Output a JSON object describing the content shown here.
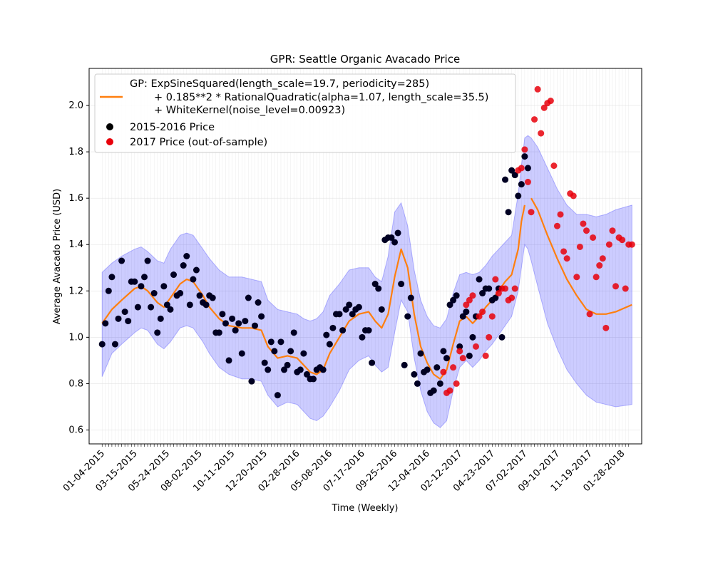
{
  "chart_data": {
    "type": "line",
    "title": "GPR: Seattle Organic Avacado Price",
    "xlabel": "Time (Weekly)",
    "ylabel": "Average Avacado Price (USD)",
    "ylim": [
      0.54,
      2.16
    ],
    "xlim": [
      -4,
      166
    ],
    "grid": true,
    "legend_position": "top-left",
    "x_tick_labels": [
      "01-04-2015",
      "03-15-2015",
      "05-24-2015",
      "08-02-2015",
      "10-11-2015",
      "12-20-2015",
      "02-28-2016",
      "05-08-2016",
      "07-17-2016",
      "09-25-2016",
      "12-04-2016",
      "02-12-2017",
      "04-23-2017",
      "07-02-2017",
      "09-10-2017",
      "11-19-2017",
      "01-28-2018"
    ],
    "y_ticks": [
      0.6,
      0.8,
      1.0,
      1.2,
      1.4,
      1.6,
      1.8,
      2.0
    ],
    "legend": {
      "gp_lines": [
        "GP: ExpSineSquared(length_scale=19.7, periodicity=285)",
        "+ 0.185**2 * RationalQuadratic(alpha=1.07, length_scale=35.5)",
        "+ WhiteKernel(noise_level=0.00923)"
      ],
      "train_label": "2015-2016 Price",
      "test_label": "2017 Price (out-of-sample)"
    },
    "colors": {
      "gp_mean": "#ff7f0e",
      "band": "#0000ff",
      "train": "#000022",
      "test": "#e8000b",
      "grid": "#dddddd"
    },
    "series": [
      {
        "name": "2015-2016 Price",
        "kind": "scatter",
        "x": [
          0,
          1,
          2,
          3,
          4,
          5,
          6,
          7,
          8,
          9,
          10,
          11,
          12,
          13,
          14,
          15,
          16,
          17,
          18,
          19,
          20,
          21,
          22,
          23,
          24,
          25,
          26,
          27,
          28,
          29,
          30,
          31,
          32,
          33,
          34,
          35,
          36,
          37,
          38,
          39,
          40,
          41,
          42,
          43,
          44,
          45,
          46,
          47,
          48,
          49,
          50,
          51,
          52,
          53,
          54,
          55,
          56,
          57,
          58,
          59,
          60,
          61,
          62,
          63,
          64,
          65,
          66,
          67,
          68,
          69,
          70,
          71,
          72,
          73,
          74,
          75,
          76,
          77,
          78,
          79,
          80,
          81,
          82,
          83,
          84,
          85,
          86,
          87,
          88,
          89,
          90,
          91,
          92,
          93,
          94,
          95,
          96,
          97,
          98,
          99,
          100,
          101,
          102,
          103,
          104,
          105,
          106,
          107,
          108,
          109,
          110,
          111,
          112,
          113,
          114,
          115,
          116,
          117,
          118,
          119,
          120,
          121,
          122,
          123,
          124,
          125,
          126,
          127,
          128,
          129,
          130,
          131
        ],
        "y": [
          0.97,
          1.06,
          1.2,
          1.26,
          0.97,
          1.08,
          1.33,
          1.11,
          1.07,
          1.24,
          1.24,
          1.13,
          1.22,
          1.26,
          1.33,
          1.13,
          1.19,
          1.02,
          1.08,
          1.22,
          1.14,
          1.12,
          1.27,
          1.18,
          1.19,
          1.31,
          1.35,
          1.14,
          1.25,
          1.29,
          1.18,
          1.15,
          1.14,
          1.18,
          1.17,
          1.02,
          1.02,
          1.1,
          1.06,
          0.9,
          1.08,
          1.03,
          1.06,
          0.93,
          1.07,
          1.17,
          0.81,
          1.05,
          1.15,
          1.09,
          0.89,
          0.86,
          0.98,
          0.94,
          0.75,
          0.98,
          0.86,
          0.88,
          0.94,
          1.02,
          0.85,
          0.86,
          0.93,
          0.84,
          0.82,
          0.82,
          0.86,
          0.87,
          0.86,
          1.01,
          0.97,
          1.04,
          1.1,
          1.1,
          1.03,
          1.12,
          1.14,
          1.1,
          1.12,
          1.13,
          1.0,
          1.03,
          1.03,
          0.89,
          1.23,
          1.21,
          1.12,
          1.42,
          1.43,
          1.43,
          1.41,
          1.45,
          1.23,
          0.88,
          1.09,
          1.17,
          0.84,
          0.8,
          0.93,
          0.85,
          0.86,
          0.76,
          0.77,
          0.87,
          0.8,
          0.94,
          0.91,
          1.14,
          1.16,
          1.18,
          0.96,
          1.09,
          1.11,
          0.92,
          1.0,
          1.09,
          1.25,
          1.19,
          1.21,
          1.21,
          1.16,
          1.17,
          1.21,
          1.0,
          1.68,
          1.54,
          1.72,
          1.7,
          1.61,
          1.66,
          1.78,
          1.73
        ]
      },
      {
        "name": "2017 Price (out-of-sample)",
        "kind": "scatter",
        "x": [
          105,
          106,
          107,
          108,
          109,
          110,
          111,
          112,
          113,
          114,
          115,
          116,
          117,
          118,
          119,
          120,
          121,
          122,
          123,
          124,
          125,
          126,
          127,
          128,
          129,
          130,
          131,
          132,
          133,
          134,
          135,
          136,
          137,
          138,
          139,
          140,
          141,
          142,
          143,
          144,
          145,
          146,
          147,
          148,
          149,
          150,
          151,
          152,
          153,
          154,
          155,
          156,
          157,
          158,
          159,
          160,
          161,
          162,
          163
        ],
        "y": [
          0.85,
          0.76,
          0.77,
          0.87,
          0.8,
          0.94,
          0.91,
          1.14,
          1.16,
          1.18,
          0.96,
          1.09,
          1.11,
          0.92,
          1.0,
          1.09,
          1.25,
          1.19,
          1.21,
          1.21,
          1.16,
          1.17,
          1.21,
          1.72,
          1.73,
          1.81,
          1.67,
          1.54,
          1.94,
          2.07,
          1.88,
          1.99,
          2.01,
          2.02,
          1.74,
          1.48,
          1.53,
          1.37,
          1.34,
          1.62,
          1.61,
          1.26,
          1.39,
          1.49,
          1.46,
          1.1,
          1.43,
          1.26,
          1.31,
          1.34,
          1.04,
          1.4,
          1.46,
          1.22,
          1.43,
          1.42,
          1.21,
          1.4,
          1.4
        ]
      },
      {
        "name": "GP mean",
        "kind": "line",
        "x": [
          0,
          3,
          6,
          10,
          12,
          14,
          17,
          19,
          21,
          24,
          26,
          28,
          31,
          33,
          36,
          39,
          43,
          46,
          49,
          51,
          54,
          57,
          60,
          62,
          64,
          66,
          68,
          70,
          73,
          76,
          79,
          82,
          84,
          86,
          88,
          90,
          92,
          94,
          96,
          98,
          100,
          102,
          104,
          106,
          108,
          110,
          112,
          114,
          116,
          118,
          120,
          122,
          124,
          126,
          128,
          129,
          130,
          131,
          132,
          134,
          137,
          140,
          143,
          146,
          149,
          152,
          155,
          158,
          163
        ],
        "y": [
          1.06,
          1.12,
          1.16,
          1.21,
          1.22,
          1.2,
          1.15,
          1.13,
          1.17,
          1.23,
          1.25,
          1.24,
          1.18,
          1.13,
          1.08,
          1.05,
          1.04,
          1.04,
          1.03,
          0.96,
          0.91,
          0.92,
          0.91,
          0.88,
          0.85,
          0.84,
          0.86,
          0.93,
          1.0,
          1.07,
          1.1,
          1.11,
          1.07,
          1.04,
          1.1,
          1.26,
          1.38,
          1.3,
          1.1,
          0.96,
          0.89,
          0.84,
          0.82,
          0.86,
          0.97,
          1.07,
          1.09,
          1.06,
          1.09,
          1.13,
          1.16,
          1.2,
          1.24,
          1.27,
          1.38,
          1.5,
          1.57,
          null,
          1.6,
          1.55,
          1.44,
          1.34,
          1.25,
          1.18,
          1.12,
          1.1,
          1.1,
          1.11,
          1.14
        ]
      },
      {
        "name": "GP confidence band",
        "kind": "area",
        "x": [
          0,
          3,
          6,
          10,
          12,
          14,
          17,
          19,
          21,
          24,
          26,
          28,
          31,
          33,
          36,
          39,
          43,
          46,
          49,
          51,
          54,
          57,
          60,
          62,
          64,
          66,
          68,
          70,
          73,
          76,
          79,
          82,
          84,
          86,
          88,
          90,
          92,
          94,
          96,
          98,
          100,
          102,
          104,
          106,
          108,
          110,
          112,
          114,
          116,
          118,
          120,
          122,
          124,
          126,
          128,
          129,
          130,
          131,
          132,
          134,
          137,
          140,
          143,
          146,
          149,
          152,
          155,
          158,
          163
        ],
        "upper": [
          1.28,
          1.32,
          1.35,
          1.38,
          1.39,
          1.37,
          1.33,
          1.32,
          1.38,
          1.44,
          1.45,
          1.44,
          1.38,
          1.34,
          1.29,
          1.26,
          1.26,
          1.25,
          1.24,
          1.16,
          1.12,
          1.11,
          1.1,
          1.08,
          1.07,
          1.08,
          1.11,
          1.18,
          1.23,
          1.29,
          1.3,
          1.3,
          1.26,
          1.24,
          1.35,
          1.54,
          1.58,
          1.48,
          1.29,
          1.16,
          1.09,
          1.05,
          1.04,
          1.08,
          1.19,
          1.27,
          1.28,
          1.27,
          1.28,
          1.31,
          1.35,
          1.38,
          1.41,
          1.44,
          1.62,
          1.74,
          1.86,
          1.87,
          1.86,
          1.82,
          1.73,
          1.64,
          1.57,
          1.53,
          1.53,
          1.52,
          1.53,
          1.55,
          1.57
        ],
        "lower": [
          0.83,
          0.93,
          0.97,
          1.02,
          1.04,
          1.03,
          0.97,
          0.95,
          0.98,
          1.04,
          1.05,
          1.04,
          0.98,
          0.93,
          0.87,
          0.84,
          0.82,
          0.82,
          0.81,
          0.75,
          0.7,
          0.72,
          0.71,
          0.68,
          0.65,
          0.64,
          0.66,
          0.7,
          0.77,
          0.86,
          0.9,
          0.92,
          0.88,
          0.85,
          0.87,
          1.02,
          1.16,
          1.11,
          0.91,
          0.77,
          0.68,
          0.63,
          0.61,
          0.64,
          0.77,
          0.87,
          0.9,
          0.87,
          0.9,
          0.94,
          0.97,
          1.01,
          1.05,
          1.09,
          1.2,
          1.3,
          1.4,
          1.38,
          1.33,
          1.22,
          1.06,
          0.95,
          0.86,
          0.8,
          0.75,
          0.72,
          0.71,
          0.7,
          0.71
        ]
      }
    ]
  }
}
